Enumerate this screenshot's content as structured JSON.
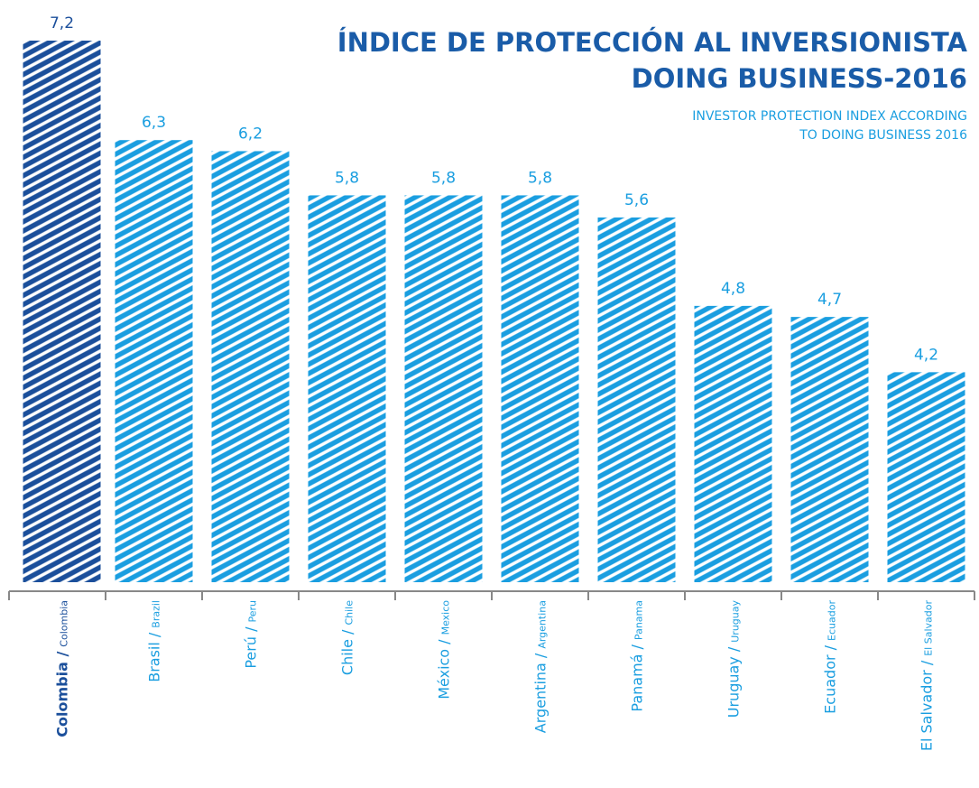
{
  "chart_data": {
    "type": "bar",
    "title_lines": [
      "ÍNDICE DE PROTECCIÓN AL INVERSIONISTA",
      "DOING BUSINESS-2016"
    ],
    "subtitle_lines": [
      "INVESTOR PROTECTION INDEX ACCORDING",
      "TO DOING BUSINESS 2016"
    ],
    "categories": [
      "Colombia /",
      "Brasil /",
      "Perú /",
      "Chile /",
      "México /",
      "Argentina /",
      "Panamá /",
      "Uruguay /",
      "Ecuador /",
      "El Salvador /"
    ],
    "categories_en": [
      "Colombia",
      "Brazil",
      "Peru",
      "Chile",
      "Mexico",
      "Argentina",
      "Panama",
      "Uruguay",
      "Ecuador",
      "El Salvador"
    ],
    "values": [
      7.2,
      6.3,
      6.2,
      5.8,
      5.8,
      5.8,
      5.6,
      4.8,
      4.7,
      4.2
    ],
    "value_labels": [
      "7,2",
      "6,3",
      "6,2",
      "5,8",
      "5,8",
      "5,8",
      "5,6",
      "4,8",
      "4,7",
      "4,2"
    ],
    "colors": [
      "#1b4f9b",
      "#1a9ee0",
      "#1a9ee0",
      "#1a9ee0",
      "#1a9ee0",
      "#1a9ee0",
      "#1a9ee0",
      "#1a9ee0",
      "#1a9ee0",
      "#1a9ee0"
    ],
    "title_color": "#1a5ca8",
    "subtitle_color": "#1a9ee0",
    "ylim": [
      2.3,
      7.2
    ]
  }
}
